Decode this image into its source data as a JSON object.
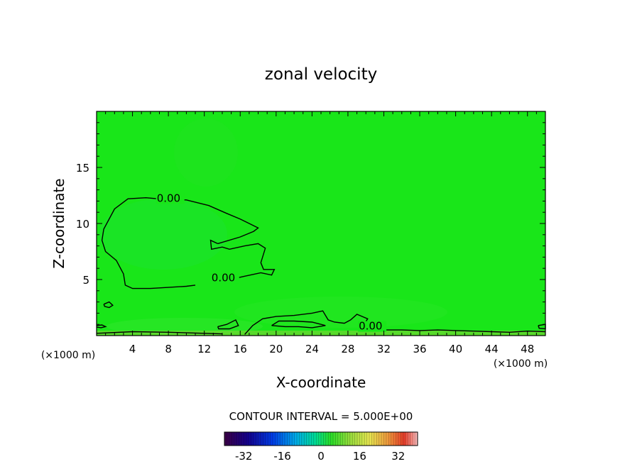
{
  "chart_data": {
    "type": "heatmap",
    "title": "zonal velocity",
    "xlabel": "X-coordinate",
    "ylabel": "Z-coordinate",
    "x_unit_left": "(×1000 m)",
    "x_unit_right": "(×1000 m)",
    "xlim": [
      0,
      50
    ],
    "ylim": [
      0,
      20
    ],
    "x_ticks": [
      4,
      8,
      12,
      16,
      20,
      24,
      28,
      32,
      36,
      40,
      44,
      48
    ],
    "x_tick_labels": [
      "4",
      "8",
      "12",
      "16",
      "20",
      "24",
      "28",
      "32",
      "36",
      "40",
      "44",
      "48"
    ],
    "y_ticks": [
      5,
      10,
      15
    ],
    "y_tick_labels": [
      "5",
      "10",
      "15"
    ],
    "field_color": "#19e619",
    "contour_color": "#000000",
    "contour_label_values": [
      "0.00",
      "0.00",
      "0.00"
    ],
    "contour_label_points": [
      [
        6.7,
        12.0
      ],
      [
        12.8,
        4.9
      ],
      [
        29.2,
        0.6
      ]
    ],
    "contour_lines": [
      [
        [
          13.5,
          8.2
        ],
        [
          16,
          8.8
        ],
        [
          17.5,
          9.3
        ],
        [
          18,
          9.6
        ],
        [
          17,
          10
        ],
        [
          16,
          10.4
        ],
        [
          14.5,
          10.9
        ],
        [
          12.5,
          11.6
        ],
        [
          10,
          12.1
        ],
        [
          8.3,
          12.1
        ],
        [
          5.5,
          12.3
        ],
        [
          3.5,
          12.2
        ],
        [
          2.0,
          11.3
        ],
        [
          0.8,
          9.5
        ],
        [
          0.6,
          8.5
        ],
        [
          1.0,
          7.5
        ],
        [
          2.2,
          6.7
        ],
        [
          3.0,
          5.5
        ],
        [
          3.2,
          4.5
        ],
        [
          4,
          4.2
        ],
        [
          6,
          4.2
        ],
        [
          8,
          4.3
        ],
        [
          10,
          4.4
        ],
        [
          11,
          4.5
        ]
      ],
      [
        [
          14.3,
          4.9
        ],
        [
          16.5,
          5.3
        ],
        [
          18.3,
          5.6
        ],
        [
          19.5,
          5.4
        ],
        [
          19.8,
          5.9
        ],
        [
          18.6,
          5.9
        ],
        [
          18.3,
          6.5
        ],
        [
          18.8,
          7.8
        ],
        [
          18.0,
          8.2
        ],
        [
          16.5,
          8.0
        ],
        [
          14.8,
          7.7
        ],
        [
          14.0,
          7.9
        ],
        [
          12.8,
          7.7
        ],
        [
          12.7,
          8.5
        ],
        [
          13.5,
          8.2
        ]
      ],
      [
        [
          16.5,
          0.1
        ],
        [
          17.4,
          0.9
        ],
        [
          18.5,
          1.5
        ],
        [
          20,
          1.7
        ],
        [
          22,
          1.8
        ],
        [
          24,
          2.0
        ],
        [
          25.2,
          2.2
        ],
        [
          25.8,
          1.4
        ],
        [
          26.5,
          1.2
        ],
        [
          27.6,
          1.1
        ],
        [
          28.3,
          1.4
        ],
        [
          29.0,
          1.9
        ],
        [
          30.2,
          1.5
        ],
        [
          29.8,
          1.0
        ],
        [
          30.6,
          0.8
        ],
        [
          31.5,
          0.6
        ],
        [
          32,
          0.5
        ],
        [
          34,
          0.5
        ],
        [
          36,
          0.45
        ],
        [
          38,
          0.5
        ],
        [
          40,
          0.45
        ],
        [
          42,
          0.4
        ],
        [
          44,
          0.35
        ],
        [
          46,
          0.3
        ],
        [
          48,
          0.4
        ],
        [
          50,
          0.35
        ]
      ],
      [
        [
          19.5,
          0.9
        ],
        [
          20.3,
          1.3
        ],
        [
          22,
          1.3
        ],
        [
          24,
          1.2
        ],
        [
          25.5,
          0.9
        ],
        [
          24,
          0.7
        ],
        [
          22.5,
          0.8
        ],
        [
          21,
          0.8
        ],
        [
          19.5,
          0.9
        ]
      ],
      [
        [
          13.5,
          0.8
        ],
        [
          14.5,
          1.0
        ],
        [
          15.5,
          1.4
        ],
        [
          15.8,
          0.9
        ],
        [
          14.8,
          0.6
        ],
        [
          13.6,
          0.6
        ],
        [
          13.5,
          0.8
        ]
      ],
      [
        [
          0.8,
          2.8
        ],
        [
          1.4,
          3.0
        ],
        [
          1.8,
          2.7
        ],
        [
          1.4,
          2.5
        ],
        [
          0.9,
          2.6
        ],
        [
          0.8,
          2.8
        ]
      ],
      [
        [
          0.0,
          0.9
        ],
        [
          0.6,
          0.95
        ],
        [
          1.0,
          0.8
        ],
        [
          0.5,
          0.7
        ],
        [
          0.0,
          0.75
        ]
      ],
      [
        [
          0.0,
          0.2
        ],
        [
          4,
          0.35
        ],
        [
          8,
          0.3
        ],
        [
          12,
          0.2
        ],
        [
          14,
          0.15
        ]
      ],
      [
        [
          49.2,
          0.9
        ],
        [
          50,
          1.0
        ],
        [
          50,
          0.6
        ],
        [
          49.3,
          0.65
        ],
        [
          49.2,
          0.9
        ]
      ]
    ],
    "contour_interval_text": "CONTOUR INTERVAL = 5.000E+00",
    "colorbar_ticks": [
      -32,
      -16,
      0,
      16,
      32
    ],
    "colorbar_tick_labels": [
      "-32",
      "-16",
      "0",
      "16",
      "32"
    ],
    "colorbar_range": [
      -40,
      40
    ]
  }
}
